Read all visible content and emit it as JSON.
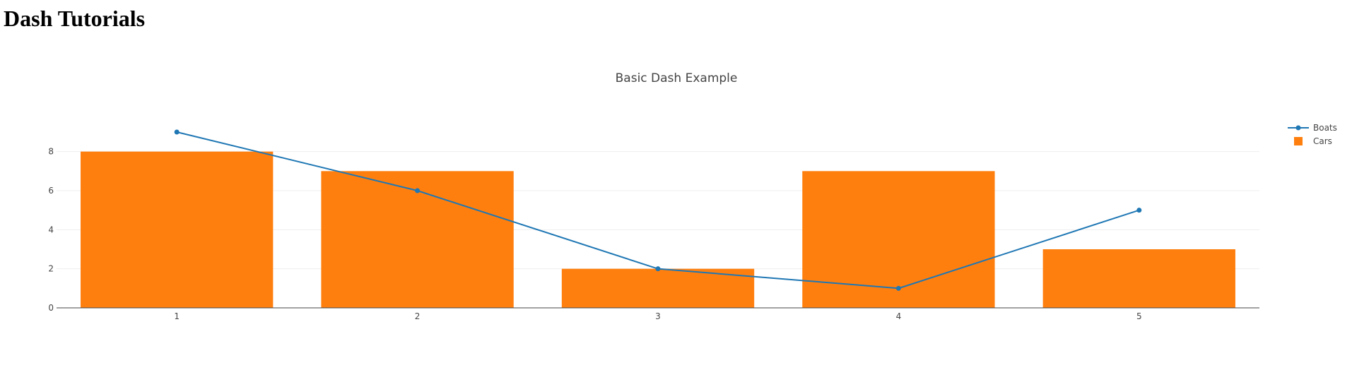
{
  "page": {
    "heading": "Dash Tutorials"
  },
  "chart_data": {
    "type": "bar",
    "title": "Basic Dash Example",
    "xlabel": "",
    "ylabel": "",
    "categories": [
      1,
      2,
      3,
      4,
      5
    ],
    "x_tick_labels": [
      "1",
      "2",
      "3",
      "4",
      "5"
    ],
    "y_ticks": [
      0,
      2,
      4,
      6,
      8
    ],
    "y_tick_labels": [
      "0",
      "2",
      "4",
      "6",
      "8"
    ],
    "ylim": [
      0,
      9.47
    ],
    "grid": true,
    "legend_position": "top-right",
    "series": [
      {
        "name": "Boats",
        "type": "line",
        "mode": "lines+markers",
        "x": [
          1,
          2,
          3,
          4,
          5
        ],
        "values": [
          9,
          6,
          2,
          1,
          5
        ],
        "color": "#1f77b4"
      },
      {
        "name": "Cars",
        "type": "bar",
        "x": [
          1,
          2,
          3,
          4,
          5
        ],
        "values": [
          8,
          7,
          2,
          7,
          3
        ],
        "color": "#ff7f0e"
      }
    ],
    "colors": {
      "title": "#444444",
      "tick": "#444444",
      "grid": "#eeeeee",
      "axis_line": "#444444"
    }
  }
}
